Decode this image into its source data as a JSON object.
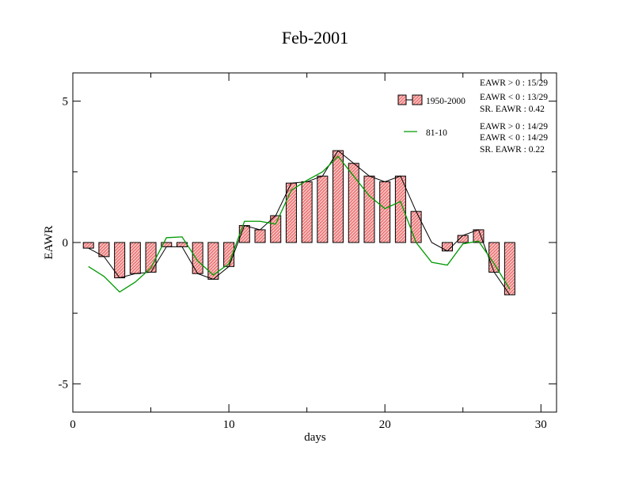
{
  "chart_data": {
    "type": "bar",
    "title": "Feb-2001",
    "xlabel": "days",
    "ylabel": "EAWR",
    "xlim": [
      0,
      31
    ],
    "ylim": [
      -6,
      6
    ],
    "x_ticks": [
      0,
      10,
      20,
      30
    ],
    "x_tick_labels": [
      "0",
      "10",
      "20",
      "30"
    ],
    "y_ticks": [
      -5,
      0,
      5
    ],
    "y_tick_labels": [
      "-5",
      "0",
      "5"
    ],
    "grid": false,
    "legend_position": "top-right",
    "colors": {
      "bar_fill": "#ef7f7f",
      "bar_stroke": "#000000",
      "line_81_10": "#009900",
      "connector": "#000000"
    },
    "x": [
      1,
      2,
      3,
      4,
      5,
      6,
      7,
      8,
      9,
      10,
      11,
      12,
      13,
      14,
      15,
      16,
      17,
      18,
      19,
      20,
      21,
      22,
      23,
      24,
      25,
      26,
      27,
      28
    ],
    "series": [
      {
        "name": "1950-2000",
        "kind": "bar",
        "values": [
          -0.2,
          -0.5,
          -1.25,
          -1.1,
          -1.05,
          -0.15,
          -0.15,
          -1.1,
          -1.3,
          -0.85,
          0.6,
          0.45,
          0.95,
          2.1,
          2.15,
          2.35,
          3.25,
          2.8,
          2.35,
          2.15,
          2.35,
          1.1,
          0.0,
          -0.3,
          0.25,
          0.45,
          -1.05,
          -1.85
        ]
      },
      {
        "name": "81-10",
        "kind": "line",
        "values": [
          -0.85,
          -1.2,
          -1.75,
          -1.4,
          -0.9,
          0.17,
          0.2,
          -0.65,
          -1.15,
          -0.75,
          0.75,
          0.75,
          0.65,
          1.85,
          2.2,
          2.5,
          3.05,
          2.35,
          1.65,
          1.2,
          1.45,
          0.0,
          -0.7,
          -0.8,
          -0.05,
          0.05,
          -0.75,
          -1.65
        ]
      }
    ],
    "annotations": {
      "group1": [
        "EAWR > 0 : 15/29",
        "EAWR < 0 : 13/29",
        "SR. EAWR :  0.42"
      ],
      "group2": [
        "EAWR > 0 : 14/29",
        "EAWR < 0 : 14/29",
        "SR. EAWR :  0.22"
      ]
    }
  }
}
